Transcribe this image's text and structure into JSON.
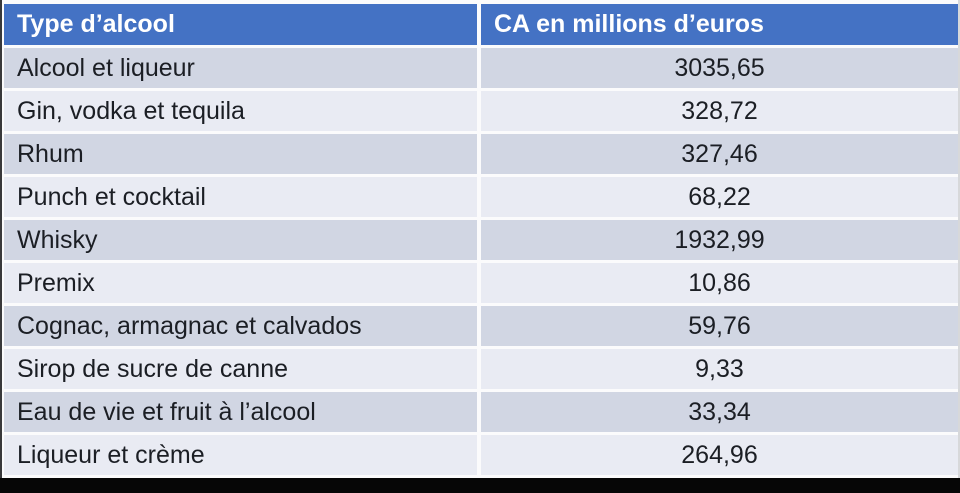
{
  "table": {
    "headers": [
      "Type d’alcool",
      "CA en millions d’euros"
    ],
    "rows": [
      {
        "type": "Alcool et liqueur",
        "value": "3035,65"
      },
      {
        "type": "Gin, vodka et tequila",
        "value": "328,72"
      },
      {
        "type": "Rhum",
        "value": "327,46"
      },
      {
        "type": "Punch et cocktail",
        "value": "68,22"
      },
      {
        "type": "Whisky",
        "value": "1932,99"
      },
      {
        "type": "Premix",
        "value": "10,86"
      },
      {
        "type": "Cognac, armagnac et calvados",
        "value": "59,76"
      },
      {
        "type": "Sirop de sucre de canne",
        "value": "9,33"
      },
      {
        "type": "Eau de vie et fruit à l’alcool",
        "value": "33,34"
      },
      {
        "type": "Liqueur et crème",
        "value": "264,96"
      }
    ]
  },
  "colors": {
    "header_bg": "#4472C4",
    "header_text": "#FFFFFF",
    "row_dark": "#D1D6E3",
    "row_light": "#E9EBF3",
    "row_text": "#1B1E24",
    "separator": "#FBFBFC",
    "bottom_bar": "#060606"
  },
  "chart_data": {
    "type": "table",
    "title": "",
    "columns": [
      "Type d’alcool",
      "CA en millions d’euros"
    ],
    "categories": [
      "Alcool et liqueur",
      "Gin, vodka et tequila",
      "Rhum",
      "Punch et cocktail",
      "Whisky",
      "Premix",
      "Cognac, armagnac et calvados",
      "Sirop de sucre de canne",
      "Eau de vie et fruit à l’alcool",
      "Liqueur et crème"
    ],
    "values": [
      3035.65,
      328.72,
      327.46,
      68.22,
      1932.99,
      10.86,
      59.76,
      9.33,
      33.34,
      264.96
    ],
    "value_unit": "millions d’euros",
    "decimal_separator": ","
  }
}
